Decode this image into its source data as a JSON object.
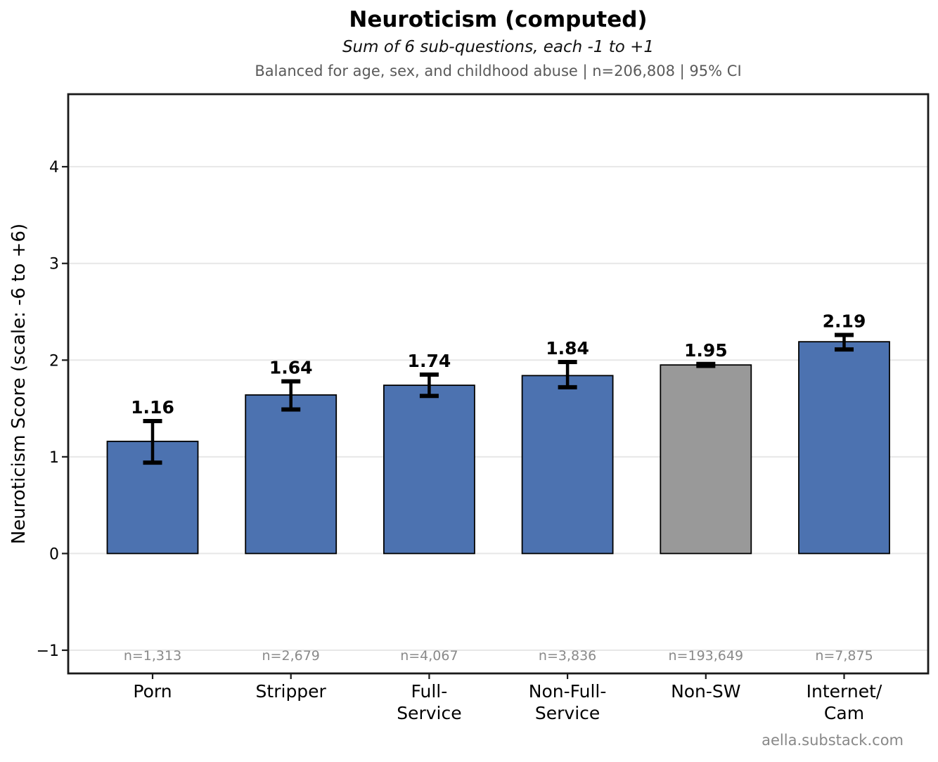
{
  "header": {
    "title": "Neuroticism (computed)",
    "subtitle": "Sum of 6 sub-questions, each -1 to +1",
    "note": "Balanced for age, sex, and childhood abuse  |  n=206,808  |  95% CI"
  },
  "footer": {
    "credit": "aella.substack.com"
  },
  "chart_data": {
    "type": "bar",
    "title": "Neuroticism (computed)",
    "subtitle": "Sum of 6 sub-questions, each -1 to +1",
    "note": "Balanced for age, sex, and childhood abuse | n=206,808 | 95% CI",
    "ylabel": "Neuroticism Score (scale: -6 to +6)",
    "categories": [
      "Porn",
      "Stripper",
      "Full-Service",
      "Non-Full-Service",
      "Non-SW",
      "Internet/Cam"
    ],
    "category_lines": [
      [
        "Porn"
      ],
      [
        "Stripper"
      ],
      [
        "Full-",
        "Service"
      ],
      [
        "Non-Full-",
        "Service"
      ],
      [
        "Non-SW"
      ],
      [
        "Internet/",
        "Cam"
      ]
    ],
    "values": [
      1.16,
      1.64,
      1.74,
      1.84,
      1.95,
      2.19
    ],
    "value_labels": [
      "1.16",
      "1.64",
      "1.74",
      "1.84",
      "1.95",
      "2.19"
    ],
    "ci_low": [
      0.94,
      1.49,
      1.63,
      1.72,
      1.94,
      2.11
    ],
    "ci_high": [
      1.37,
      1.78,
      1.85,
      1.98,
      1.96,
      2.26
    ],
    "n_labels": [
      "n=1,313",
      "n=2,679",
      "n=4,067",
      "n=3,836",
      "n=193,649",
      "n=7,875"
    ],
    "bar_colors": [
      "#4C72B0",
      "#4C72B0",
      "#4C72B0",
      "#4C72B0",
      "#999999",
      "#4C72B0"
    ],
    "bar_edge_color": "#000000",
    "error_color": "#000000",
    "grid": "horizontal-only",
    "grid_color": "#e7e7e7",
    "spine_color": "#1a1a1a",
    "n_label_color": "#8a8a8a",
    "yticks": [
      -1,
      0,
      1,
      2,
      3,
      4
    ],
    "ytick_labels": [
      "−1",
      "0",
      "1",
      "2",
      "3",
      "4"
    ],
    "ylim": [
      -1.24,
      4.75
    ],
    "legend": "none"
  }
}
